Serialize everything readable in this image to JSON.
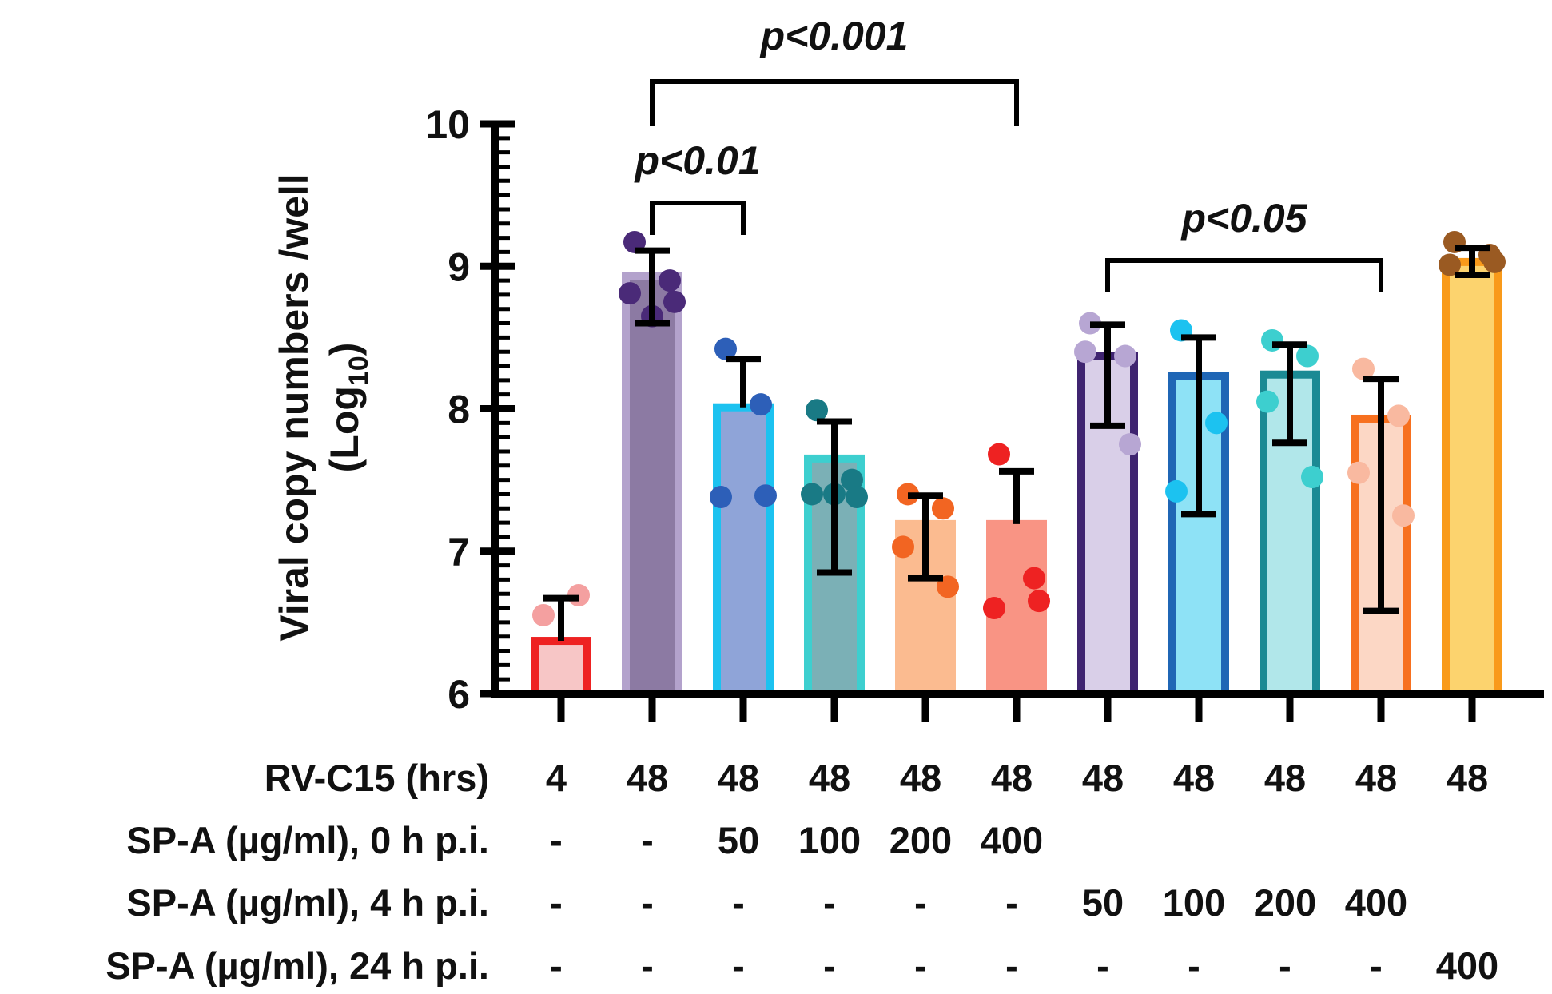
{
  "chart_data": {
    "type": "bar",
    "ylabel_line1": "Viral copy numbers /well",
    "ylabel_line2_prefix": "(Log",
    "ylabel_line2_sub": "10",
    "ylabel_line2_suffix": ")",
    "ylim": [
      6,
      10
    ],
    "yticks": [
      {
        "value": 6,
        "label": "6"
      },
      {
        "value": 7,
        "label": "7"
      },
      {
        "value": 8,
        "label": "8"
      },
      {
        "value": 9,
        "label": "9"
      },
      {
        "value": 10,
        "label": "10"
      }
    ],
    "rows": [
      {
        "label": "RV-C15 (hrs)",
        "values": [
          "4",
          "48",
          "48",
          "48",
          "48",
          "48",
          "48",
          "48",
          "48",
          "48",
          "48"
        ]
      },
      {
        "label": "SP-A (µg/ml), 0 h p.i.",
        "values": [
          "-",
          "-",
          "50",
          "100",
          "200",
          "400",
          "",
          "",
          "",
          "",
          ""
        ]
      },
      {
        "label": "SP-A (µg/ml), 4 h p.i.",
        "values": [
          "-",
          "-",
          "-",
          "-",
          "-",
          "-",
          "50",
          "100",
          "200",
          "400",
          ""
        ]
      },
      {
        "label": "SP-A (µg/ml), 24 h p.i.",
        "values": [
          "-",
          "-",
          "-",
          "-",
          "-",
          "-",
          "-",
          "-",
          "-",
          "-",
          "400"
        ]
      }
    ],
    "bars": [
      {
        "value": 6.37,
        "err_high": 6.67,
        "err_low": 6.37,
        "fill": "#f7c6c6",
        "stroke": "#ee2222",
        "dot": "#f4a0a0",
        "points": [
          6.55,
          6.69
        ]
      },
      {
        "value": 8.93,
        "err_high": 9.11,
        "err_low": 8.6,
        "fill": "#8c7aa3",
        "stroke": "#b3a2cc",
        "dot": "#4a2a78",
        "points": [
          9.17,
          8.9,
          8.81,
          8.75,
          8.65
        ]
      },
      {
        "value": 8.01,
        "err_high": 8.35,
        "err_low": 8.01,
        "fill": "#8fa4d8",
        "stroke": "#1cc2f0",
        "dot": "#2d5fb8",
        "points": [
          8.42,
          8.03,
          7.38,
          7.39
        ]
      },
      {
        "value": 7.65,
        "err_high": 7.91,
        "err_low": 6.85,
        "fill": "#7bb0b6",
        "stroke": "#3dcfcf",
        "dot": "#197a85",
        "points": [
          7.99,
          7.5,
          7.4,
          7.38,
          7.4
        ]
      },
      {
        "value": 7.19,
        "err_high": 7.39,
        "err_low": 6.81,
        "fill": "#fbbb90",
        "stroke": "#fbbb90",
        "dot": "#f26522",
        "points": [
          7.4,
          7.3,
          7.03,
          6.75
        ]
      },
      {
        "value": 7.19,
        "err_high": 7.56,
        "err_low": 7.19,
        "fill": "#f99484",
        "stroke": "#f99484",
        "dot": "#ee2222",
        "points": [
          7.68,
          6.81,
          6.6,
          6.65
        ]
      },
      {
        "value": 8.37,
        "err_high": 8.59,
        "err_low": 7.88,
        "fill": "#d9cfe8",
        "stroke": "#3f2470",
        "dot": "#b7a6d3",
        "points": [
          8.6,
          8.37,
          8.4,
          7.75
        ]
      },
      {
        "value": 8.23,
        "err_high": 8.5,
        "err_low": 7.26,
        "fill": "#8ee2f6",
        "stroke": "#1f66b5",
        "dot": "#1cc2f0",
        "points": [
          8.55,
          7.9,
          7.42
        ]
      },
      {
        "value": 8.24,
        "err_high": 8.45,
        "err_low": 7.76,
        "fill": "#b1e7ea",
        "stroke": "#1b8a94",
        "dot": "#3dcfcf",
        "points": [
          8.48,
          8.37,
          8.05,
          7.52
        ]
      },
      {
        "value": 7.93,
        "err_high": 8.21,
        "err_low": 6.58,
        "fill": "#fcd7c5",
        "stroke": "#f7701f",
        "dot": "#f9b9a0",
        "points": [
          8.28,
          7.95,
          7.55,
          7.25
        ]
      },
      {
        "value": 9.03,
        "err_high": 9.13,
        "err_low": 8.94,
        "fill": "#fcd36e",
        "stroke": "#f99a1a",
        "dot": "#9a5a22",
        "points": [
          9.17,
          9.08,
          9.01,
          9.03
        ]
      }
    ],
    "significance": [
      {
        "label": "p<0.001",
        "from": 1,
        "to": 5,
        "level": "top"
      },
      {
        "label": "p<0.01",
        "from": 1,
        "to": 2,
        "level": "mid"
      },
      {
        "label": "p<0.05",
        "from": 6,
        "to": 9,
        "level": "right"
      }
    ]
  }
}
